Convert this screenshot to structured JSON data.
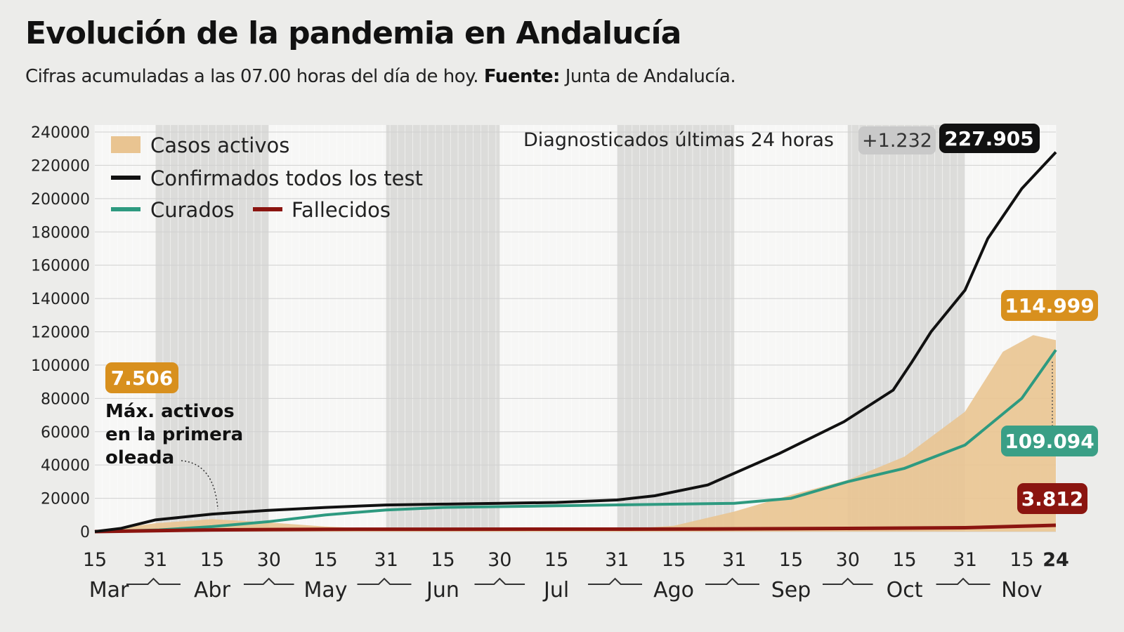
{
  "title": "Evolución de la pandemia en Andalucía",
  "subtitle": {
    "text": "Cifras acumuladas a las 07.00 horas del día de hoy.",
    "source_label": "Fuente:",
    "source": "Junta de Andalucía."
  },
  "chart_data": {
    "type": "area+line",
    "ylim": [
      0,
      240000
    ],
    "yticks": [
      0,
      20000,
      40000,
      60000,
      80000,
      100000,
      120000,
      140000,
      160000,
      180000,
      200000,
      220000,
      240000
    ],
    "xlim": [
      "2020-03-15",
      "2020-11-24"
    ],
    "xticks": [
      {
        "date": "2020-03-15",
        "label": "15"
      },
      {
        "date": "2020-03-31",
        "label": "31"
      },
      {
        "date": "2020-04-15",
        "label": "15"
      },
      {
        "date": "2020-04-30",
        "label": "30"
      },
      {
        "date": "2020-05-15",
        "label": "15"
      },
      {
        "date": "2020-05-31",
        "label": "31"
      },
      {
        "date": "2020-06-15",
        "label": "15"
      },
      {
        "date": "2020-06-30",
        "label": "30"
      },
      {
        "date": "2020-07-15",
        "label": "15"
      },
      {
        "date": "2020-07-31",
        "label": "31"
      },
      {
        "date": "2020-08-15",
        "label": "15"
      },
      {
        "date": "2020-08-31",
        "label": "31"
      },
      {
        "date": "2020-09-15",
        "label": "15"
      },
      {
        "date": "2020-09-30",
        "label": "30"
      },
      {
        "date": "2020-10-15",
        "label": "15"
      },
      {
        "date": "2020-10-31",
        "label": "31"
      },
      {
        "date": "2020-11-15",
        "label": "15"
      },
      {
        "date": "2020-11-24",
        "label": "24"
      }
    ],
    "months": [
      {
        "label": "Mar",
        "date": "2020-03-15"
      },
      {
        "label": "Abr",
        "date": "2020-04-15"
      },
      {
        "label": "May",
        "date": "2020-05-15"
      },
      {
        "label": "Jun",
        "date": "2020-06-15"
      },
      {
        "label": "Jul",
        "date": "2020-07-15"
      },
      {
        "label": "Ago",
        "date": "2020-08-15"
      },
      {
        "label": "Sep",
        "date": "2020-09-15"
      },
      {
        "label": "Oct",
        "date": "2020-10-15"
      },
      {
        "label": "Nov",
        "date": "2020-11-15"
      }
    ],
    "legend": [
      {
        "key": "activos",
        "label": "Casos activos"
      },
      {
        "key": "confirmados",
        "label": "Confirmados todos los test"
      },
      {
        "key": "curados",
        "label": "Curados"
      },
      {
        "key": "fallecidos",
        "label": "Fallecidos"
      }
    ],
    "colors": {
      "activos": "#e9c491",
      "confirmados": "#111111",
      "curados": "#2e9a80",
      "fallecidos": "#8b1510",
      "activos_label": "#d8901e",
      "curados_label": "#3a9f86",
      "fallecidos_label": "#8b1510"
    },
    "series": [
      {
        "key": "confirmados",
        "name": "Confirmados todos los test",
        "points": [
          [
            "2020-03-15",
            0
          ],
          [
            "2020-03-22",
            2000
          ],
          [
            "2020-03-31",
            7000
          ],
          [
            "2020-04-15",
            10500
          ],
          [
            "2020-04-30",
            12800
          ],
          [
            "2020-05-15",
            14500
          ],
          [
            "2020-05-31",
            16000
          ],
          [
            "2020-06-15",
            16500
          ],
          [
            "2020-06-30",
            17000
          ],
          [
            "2020-07-15",
            17500
          ],
          [
            "2020-07-31",
            19000
          ],
          [
            "2020-08-10",
            21500
          ],
          [
            "2020-08-24",
            28000
          ],
          [
            "2020-09-12",
            47000
          ],
          [
            "2020-09-29",
            66000
          ],
          [
            "2020-10-12",
            85000
          ],
          [
            "2020-10-17",
            102000
          ],
          [
            "2020-10-22",
            120000
          ],
          [
            "2020-10-31",
            145000
          ],
          [
            "2020-11-06",
            176000
          ],
          [
            "2020-11-15",
            206000
          ],
          [
            "2020-11-24",
            227905
          ]
        ]
      },
      {
        "key": "curados",
        "name": "Curados",
        "points": [
          [
            "2020-03-15",
            0
          ],
          [
            "2020-04-01",
            1000
          ],
          [
            "2020-04-15",
            3000
          ],
          [
            "2020-04-30",
            6000
          ],
          [
            "2020-05-15",
            10000
          ],
          [
            "2020-05-31",
            13000
          ],
          [
            "2020-06-15",
            14500
          ],
          [
            "2020-07-15",
            15500
          ],
          [
            "2020-08-31",
            17000
          ],
          [
            "2020-09-15",
            20000
          ],
          [
            "2020-09-30",
            30000
          ],
          [
            "2020-10-15",
            38000
          ],
          [
            "2020-10-31",
            52000
          ],
          [
            "2020-11-15",
            80000
          ],
          [
            "2020-11-24",
            109094
          ]
        ]
      },
      {
        "key": "activos",
        "name": "Casos activos",
        "points": [
          [
            "2020-03-15",
            0
          ],
          [
            "2020-03-31",
            5000
          ],
          [
            "2020-04-15",
            7506
          ],
          [
            "2020-04-30",
            5500
          ],
          [
            "2020-05-15",
            3000
          ],
          [
            "2020-05-31",
            1500
          ],
          [
            "2020-06-30",
            800
          ],
          [
            "2020-07-31",
            1200
          ],
          [
            "2020-08-15",
            3500
          ],
          [
            "2020-08-31",
            12000
          ],
          [
            "2020-09-15",
            22000
          ],
          [
            "2020-09-30",
            31000
          ],
          [
            "2020-10-15",
            45000
          ],
          [
            "2020-10-31",
            72000
          ],
          [
            "2020-11-10",
            108000
          ],
          [
            "2020-11-18",
            118000
          ],
          [
            "2020-11-24",
            114999
          ]
        ]
      },
      {
        "key": "fallecidos",
        "name": "Fallecidos",
        "points": [
          [
            "2020-03-15",
            0
          ],
          [
            "2020-04-15",
            1000
          ],
          [
            "2020-05-15",
            1400
          ],
          [
            "2020-08-15",
            1500
          ],
          [
            "2020-09-30",
            1900
          ],
          [
            "2020-10-31",
            2300
          ],
          [
            "2020-11-24",
            3812
          ]
        ]
      }
    ],
    "annotations": {
      "diag_label": "Diagnosticados últimas 24 horas",
      "diag_delta": "+1.232",
      "confirmados_value": "227.905",
      "activos_value": "114.999",
      "curados_value": "109.094",
      "fallecidos_value": "3.812",
      "max_value": "7.506",
      "max_text": [
        "Máx. activos",
        "en la primera",
        "oleada"
      ]
    }
  }
}
